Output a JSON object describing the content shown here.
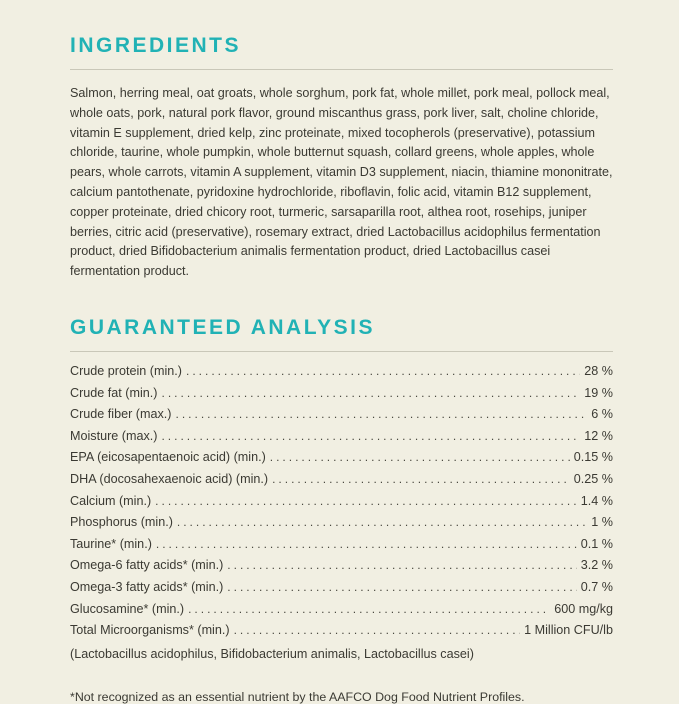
{
  "colors": {
    "background": "#f1efe2",
    "accent_teal": "#21b2b5",
    "text": "#3b3a33",
    "rule": "#c9c7b8"
  },
  "ingredients": {
    "heading": "INGREDIENTS",
    "text": "Salmon, herring meal, oat groats, whole sorghum, pork fat, whole millet, pork meal, pollock meal, whole oats, pork, natural pork flavor, ground miscanthus grass, pork liver, salt, choline chloride, vitamin E supplement, dried kelp, zinc proteinate, mixed tocopherols (preservative), potassium chloride, taurine, whole pumpkin, whole butternut squash, collard greens, whole apples, whole pears, whole carrots, vitamin A supplement, vitamin D3 supplement, niacin, thiamine mononitrate, calcium pantothenate, pyridoxine hydrochloride, riboflavin, folic acid, vitamin B12 supplement, copper proteinate, dried chicory root, turmeric, sarsaparilla root, althea root, rosehips, juniper berries, citric acid (preservative), rosemary extract, dried Lactobacillus acidophilus fermentation product, dried Bifidobacterium animalis fermentation product, dried Lactobacillus casei fermentation product."
  },
  "guaranteed_analysis": {
    "heading": "GUARANTEED ANALYSIS",
    "rows": [
      {
        "label": "Crude protein (min.)",
        "value": "28 %"
      },
      {
        "label": "Crude fat (min.)",
        "value": "19 %"
      },
      {
        "label": "Crude fiber (max.)",
        "value": "6 %"
      },
      {
        "label": "Moisture (max.)",
        "value": "12 %"
      },
      {
        "label": "EPA (eicosapentaenoic acid) (min.)",
        "value": "0.15 %"
      },
      {
        "label": "DHA (docosahexaenoic acid) (min.)",
        "value": "0.25 %"
      },
      {
        "label": "Calcium (min.)",
        "value": "1.4 %"
      },
      {
        "label": "Phosphorus (min.)",
        "value": "1 %"
      },
      {
        "label": "Taurine* (min.)",
        "value": "0.1 %"
      },
      {
        "label": "Omega-6 fatty acids* (min.)",
        "value": "3.2 %"
      },
      {
        "label": "Omega-3 fatty acids* (min.)",
        "value": "0.7 %"
      },
      {
        "label": "Glucosamine* (min.)",
        "value": "600 mg/kg"
      },
      {
        "label": "Total Microorganisms* (min.)",
        "value": "1 Million CFU/lb"
      }
    ],
    "note_line": "(Lactobacillus acidophilus, Bifidobacterium animalis, Lactobacillus casei)",
    "footnote": "*Not recognized as an essential nutrient by the AAFCO Dog Food Nutrient Profiles."
  }
}
